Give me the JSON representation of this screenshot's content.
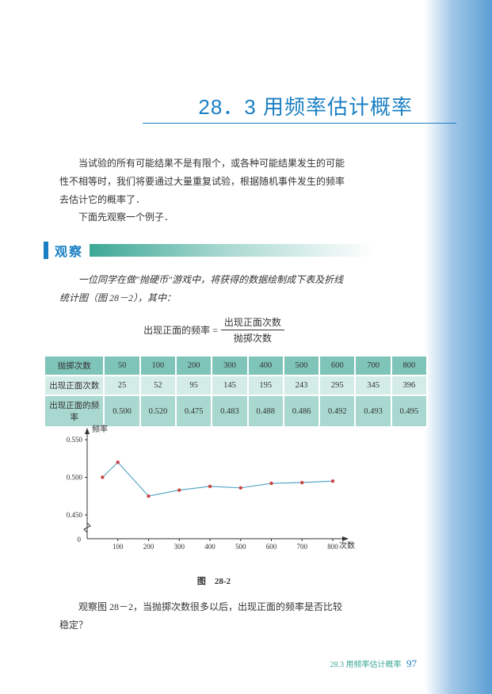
{
  "section_title": "28．3 用频率估计概率",
  "intro": "当试验的所有可能结果不是有限个，或各种可能结果发生的可能性不相等时，我们将要通过大量重复试验，根据随机事件发生的频率去估计它的概率了．\n下面先观察一个例子．",
  "observe_label": "观察",
  "observe_text": "一位同学在做\"抛硬币\"游戏中，将获得的数据绘制成下表及折线统计图（图 28－2），其中：",
  "formula_left": "出现正面的频率 =",
  "formula_top": "出现正面次数",
  "formula_bot": "抛掷次数",
  "table": {
    "row_headers": [
      "抛掷次数",
      "出现正面次数",
      "出现正面的频率"
    ],
    "columns": [
      "50",
      "100",
      "200",
      "300",
      "400",
      "500",
      "600",
      "700",
      "800"
    ],
    "rows": [
      [
        "25",
        "52",
        "95",
        "145",
        "195",
        "243",
        "295",
        "345",
        "396"
      ],
      [
        "0.500",
        "0.520",
        "0.475",
        "0.483",
        "0.488",
        "0.486",
        "0.492",
        "0.493",
        "0.495"
      ]
    ]
  },
  "chart": {
    "y_label": "频率",
    "x_label": "次数",
    "y_ticks": [
      "0",
      "0.450",
      "0.500",
      "0.550"
    ],
    "x_ticks": [
      "0",
      "100",
      "200",
      "300",
      "400",
      "500",
      "600",
      "700",
      "800"
    ],
    "points": [
      {
        "x": 50,
        "y": 0.5
      },
      {
        "x": 100,
        "y": 0.52
      },
      {
        "x": 200,
        "y": 0.475
      },
      {
        "x": 300,
        "y": 0.483
      },
      {
        "x": 400,
        "y": 0.488
      },
      {
        "x": 500,
        "y": 0.486
      },
      {
        "x": 600,
        "y": 0.492
      },
      {
        "x": 700,
        "y": 0.493
      },
      {
        "x": 800,
        "y": 0.495
      }
    ],
    "line_color": "#5aa8c8",
    "point_color": "#c44",
    "axis_color": "#333"
  },
  "chart_caption": "图　28-2",
  "question": "观察图 28－2，当抛掷次数很多以后，出现正面的频率是否比较稳定？",
  "footer_text": "28.3 用频率估计概率",
  "page_number": "97"
}
